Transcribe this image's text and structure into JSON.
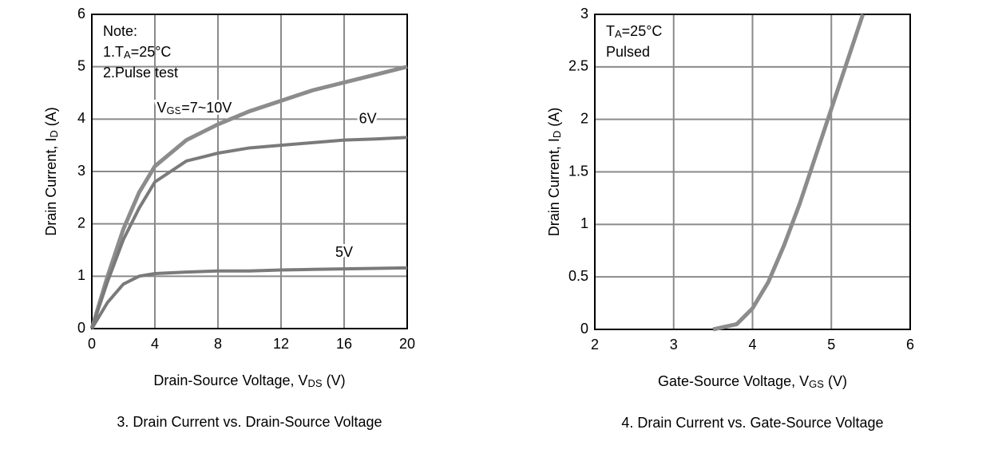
{
  "chart_data": [
    {
      "type": "line",
      "caption": "3. Drain Current vs. Drain-Source Voltage",
      "x_label": [
        "Drain-Source Voltage, V",
        "DS",
        " (V)"
      ],
      "y_label": [
        "Drain Current, I",
        "D",
        " (A)"
      ],
      "annotations": [
        [
          "Note:"
        ],
        [
          "1.T",
          "A",
          "=25°C"
        ],
        [
          "2.Pulse test"
        ]
      ],
      "series_labels": [
        [
          "V",
          "GS",
          "=7~10V"
        ],
        [
          "6V"
        ],
        [
          "5V"
        ]
      ],
      "x": [
        0,
        1,
        2,
        3,
        4,
        6,
        8,
        10,
        12,
        14,
        16,
        18,
        20
      ],
      "series": [
        {
          "color": "#8c8c8c",
          "values": [
            0,
            1.0,
            1.9,
            2.6,
            3.1,
            3.6,
            3.9,
            4.15,
            4.35,
            4.55,
            4.7,
            4.85,
            5.0
          ]
        },
        {
          "color": "#7a7a7a",
          "values": [
            0,
            0.9,
            1.7,
            2.3,
            2.8,
            3.2,
            3.35,
            3.45,
            3.5,
            3.55,
            3.6,
            3.62,
            3.65
          ]
        },
        {
          "color": "#7a7a7a",
          "values": [
            0,
            0.5,
            0.85,
            1.0,
            1.05,
            1.08,
            1.1,
            1.1,
            1.12,
            1.13,
            1.14,
            1.15,
            1.16
          ]
        }
      ],
      "xlim": [
        0,
        20
      ],
      "xticks": [
        0,
        4,
        8,
        12,
        16,
        20
      ],
      "ylim": [
        0,
        6
      ],
      "yticks": [
        0,
        1,
        2,
        3,
        4,
        5,
        6
      ],
      "grid": true
    },
    {
      "type": "line",
      "caption": "4. Drain Current vs. Gate-Source Voltage",
      "x_label": [
        "Gate-Source Voltage, V",
        "GS",
        " (V)"
      ],
      "y_label": [
        "Drain Current, I",
        "D",
        " (A)"
      ],
      "annotations": [
        [
          "T",
          "A",
          "=25°C"
        ],
        [
          "Pulsed"
        ]
      ],
      "series_labels": [],
      "x": [
        3.5,
        3.8,
        4.0,
        4.2,
        4.4,
        4.6,
        4.8,
        5.0,
        5.2,
        5.4
      ],
      "series": [
        {
          "color": "#8c8c8c",
          "values": [
            0,
            0.05,
            0.2,
            0.45,
            0.8,
            1.2,
            1.65,
            2.1,
            2.55,
            3
          ]
        }
      ],
      "xlim": [
        2,
        6
      ],
      "xticks": [
        2,
        3,
        4,
        5,
        6
      ],
      "ylim": [
        0,
        3
      ],
      "yticks": [
        0,
        0.5,
        1,
        1.5,
        2,
        2.5,
        3
      ],
      "grid": true
    }
  ]
}
